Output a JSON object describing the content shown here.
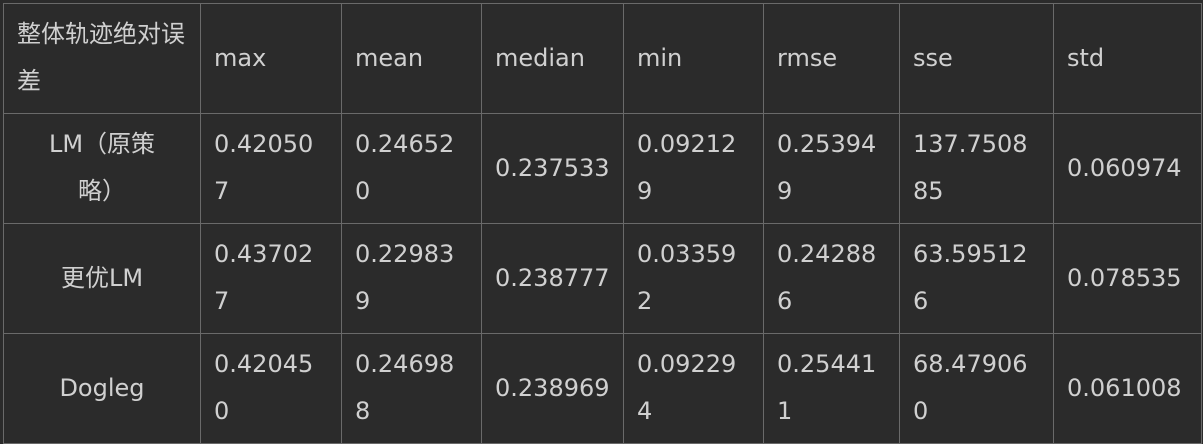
{
  "table": {
    "corner_header": "整体轨迹绝对误差",
    "columns": [
      "max",
      "mean",
      "median",
      "min",
      "rmse",
      "sse",
      "std"
    ],
    "rows": [
      {
        "label": "LM（原策略）",
        "values": [
          "0.420507",
          "0.246520",
          "0.237533",
          "0.092129",
          "0.253949",
          "137.750885",
          "0.060974"
        ]
      },
      {
        "label": "更优LM",
        "values": [
          "0.437027",
          "0.229839",
          "0.238777",
          "0.033592",
          "0.242886",
          "63.595126",
          "0.078535"
        ]
      },
      {
        "label": "Dogleg",
        "values": [
          "0.420450",
          "0.246988",
          "0.238969",
          "0.092294",
          "0.254411",
          "68.479060",
          "0.061008"
        ]
      }
    ]
  }
}
